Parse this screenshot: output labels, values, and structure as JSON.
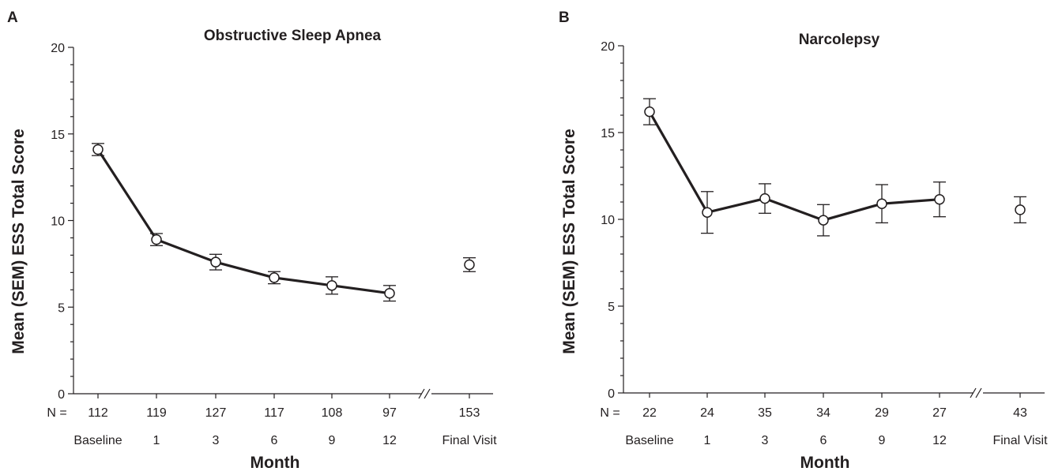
{
  "chart_data": [
    {
      "panel": "A",
      "type": "line",
      "title": "Obstructive Sleep Apnea",
      "xlabel": "Month",
      "ylabel": "Mean (SEM) ESS Total Score",
      "ylim": [
        0,
        20
      ],
      "yticks": [
        0,
        5,
        10,
        15,
        20
      ],
      "n_prefix": "N =",
      "categories": [
        "Baseline",
        "1",
        "3",
        "6",
        "9",
        "12",
        "Final Visit"
      ],
      "n_values": [
        "112",
        "119",
        "127",
        "117",
        "108",
        "97",
        "153"
      ],
      "series": [
        {
          "values": [
            14.1,
            8.9,
            7.6,
            6.7,
            6.25,
            5.8,
            7.45
          ],
          "sem": [
            0.35,
            0.35,
            0.45,
            0.35,
            0.5,
            0.45,
            0.4
          ],
          "connected": [
            true,
            true,
            true,
            true,
            true,
            true,
            false
          ]
        }
      ],
      "axis_break_between": [
        "12",
        "Final Visit"
      ],
      "grid": false
    },
    {
      "panel": "B",
      "type": "line",
      "title": "Narcolepsy",
      "xlabel": "Month",
      "ylabel": "Mean (SEM) ESS Total Score",
      "ylim": [
        0,
        20
      ],
      "yticks": [
        0,
        5,
        10,
        15,
        20
      ],
      "n_prefix": "N =",
      "categories": [
        "Baseline",
        "1",
        "3",
        "6",
        "9",
        "12",
        "Final Visit"
      ],
      "n_values": [
        "22",
        "24",
        "35",
        "34",
        "29",
        "27",
        "43"
      ],
      "series": [
        {
          "values": [
            16.2,
            10.4,
            11.2,
            9.95,
            10.9,
            11.15,
            10.55
          ],
          "sem": [
            0.75,
            1.2,
            0.85,
            0.9,
            1.1,
            1.0,
            0.75
          ],
          "connected": [
            true,
            true,
            true,
            true,
            true,
            true,
            false
          ]
        }
      ],
      "axis_break_between": [
        "12",
        "Final Visit"
      ],
      "grid": false
    }
  ]
}
